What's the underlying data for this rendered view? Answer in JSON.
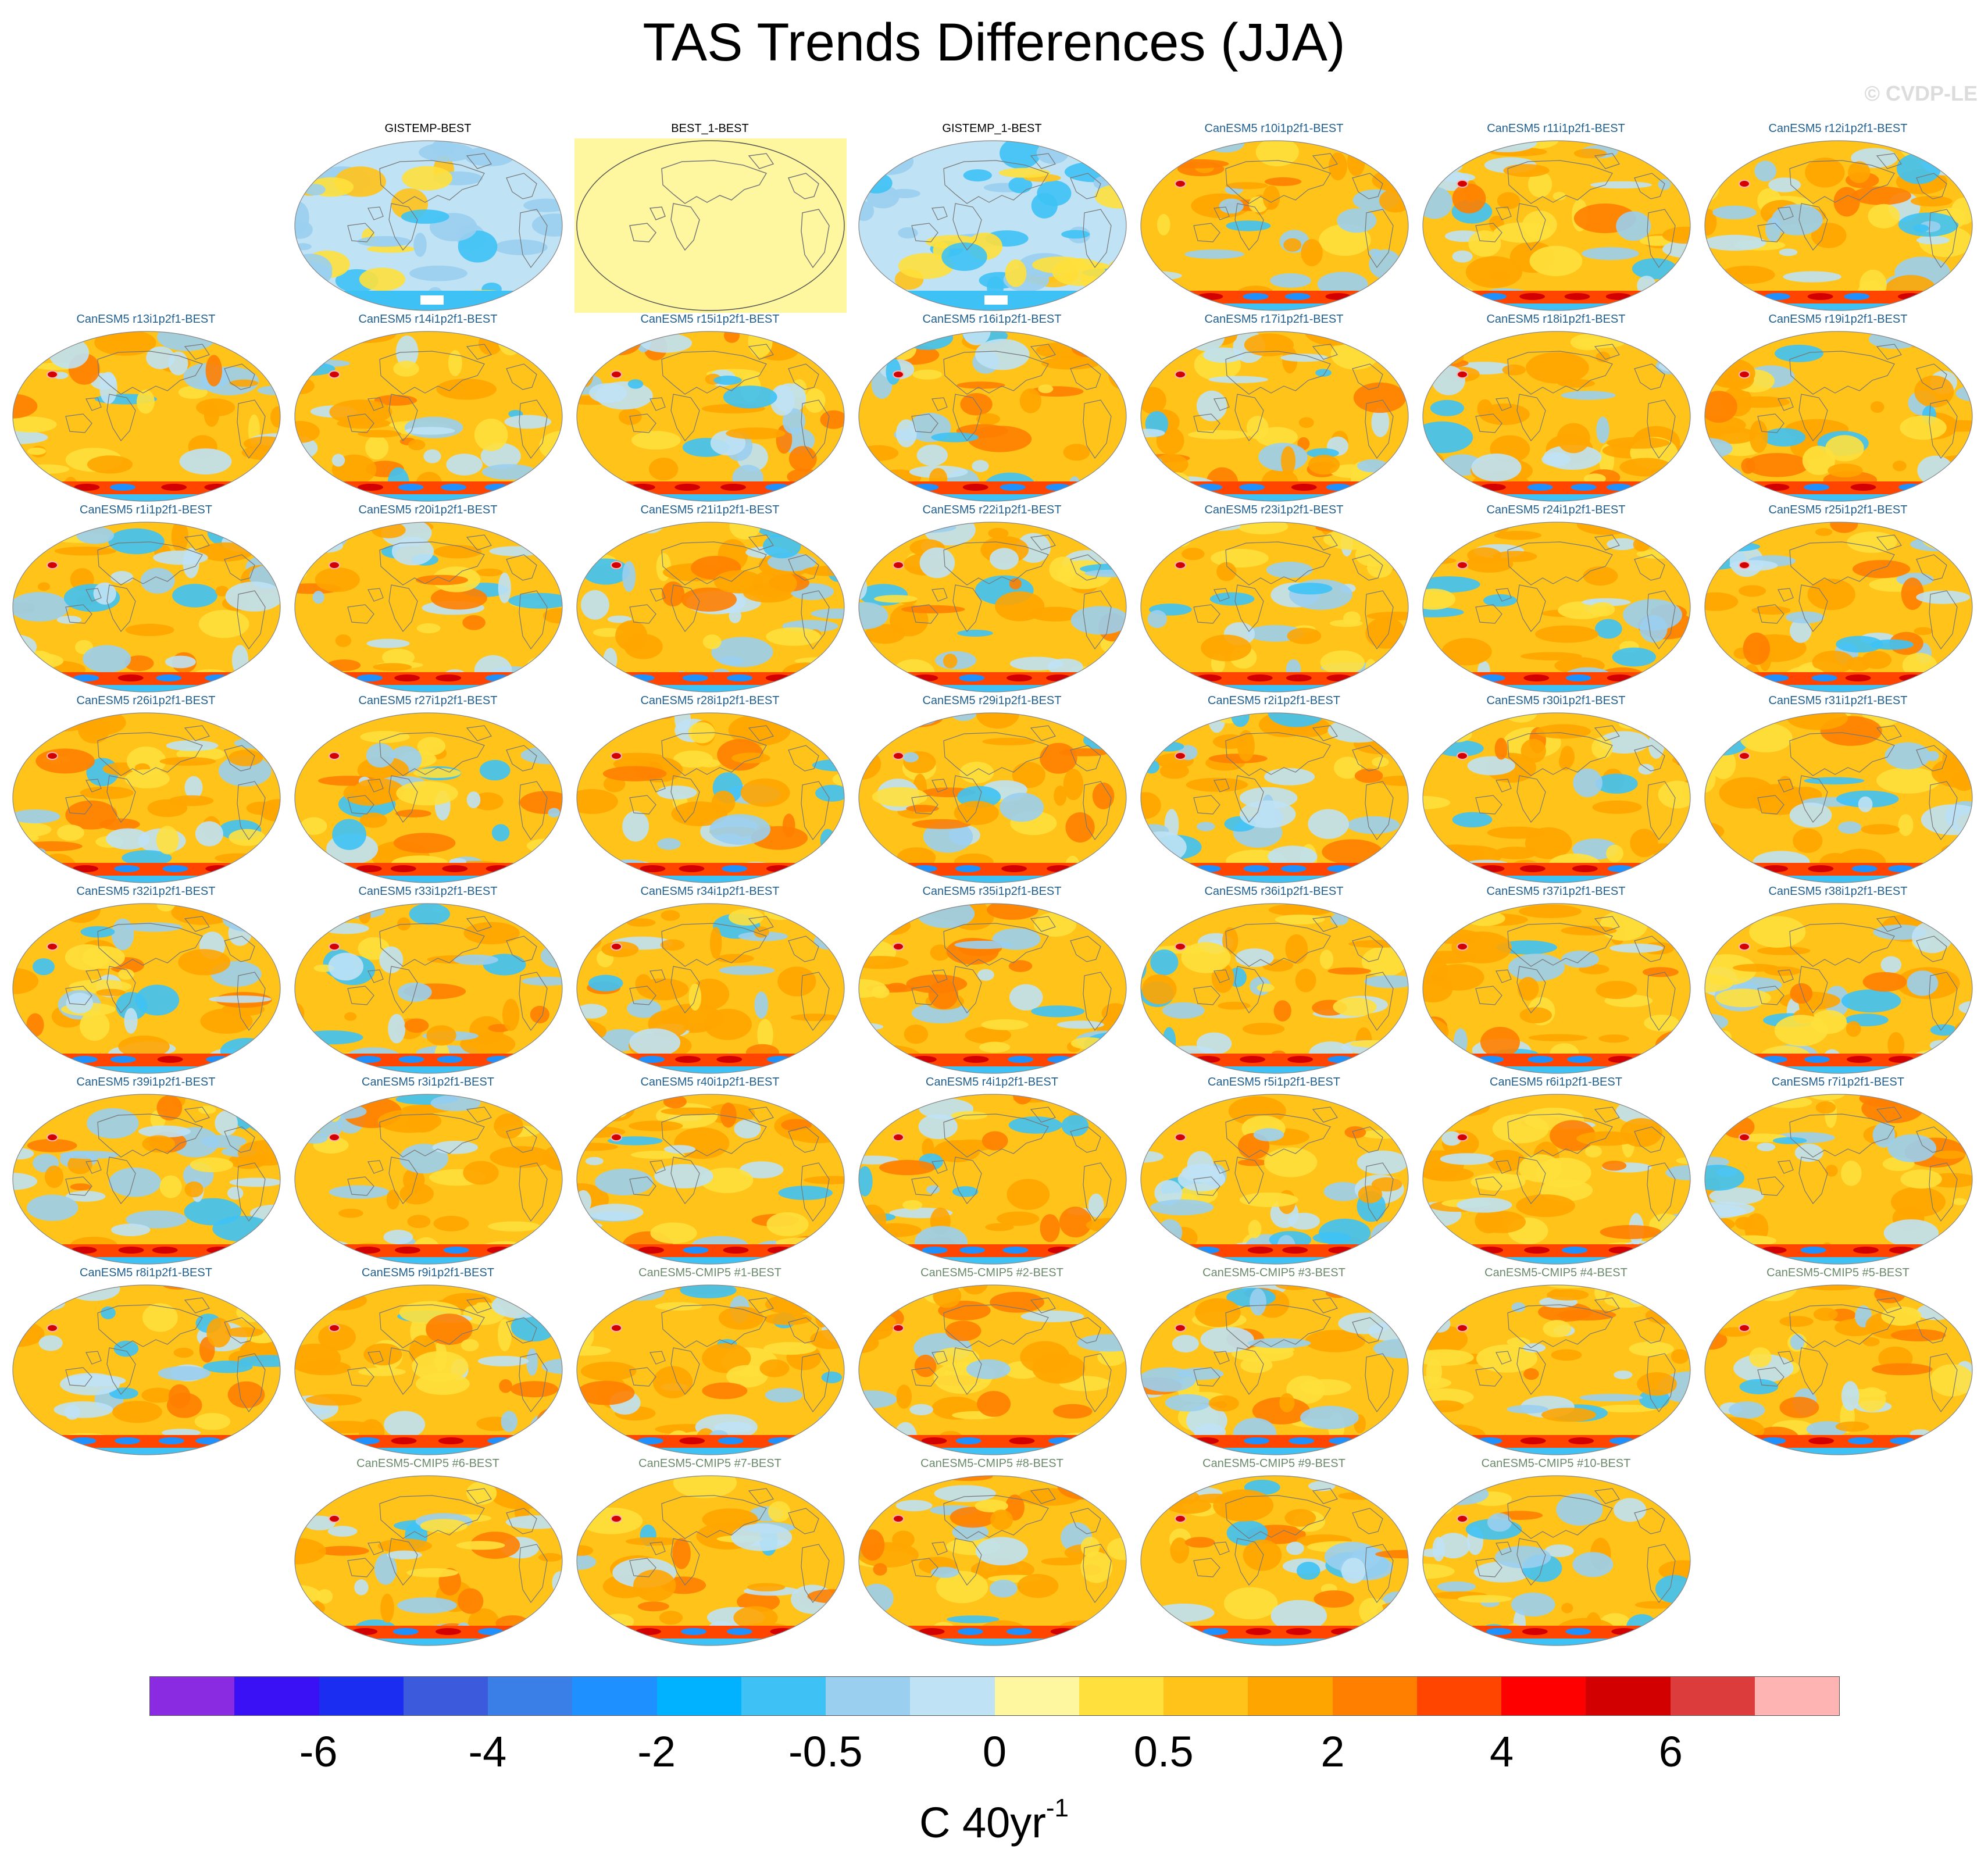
{
  "title": "TAS Trends Differences (JJA)",
  "watermark": "© CVDP-LE",
  "panels": [
    {
      "label": "GISTEMP-BEST",
      "label_color": "#000000",
      "style": "obs"
    },
    {
      "label": "BEST_1-BEST",
      "label_color": "#000000",
      "style": "blank"
    },
    {
      "label": "GISTEMP_1-BEST",
      "label_color": "#000000",
      "style": "obs"
    },
    {
      "label": "CanESM5 r10i1p2f1-BEST",
      "label_color": "#1f5f8f",
      "style": "model"
    },
    {
      "label": "CanESM5 r11i1p2f1-BEST",
      "label_color": "#1f5f8f",
      "style": "model"
    },
    {
      "label": "CanESM5 r12i1p2f1-BEST",
      "label_color": "#1f5f8f",
      "style": "model"
    },
    {
      "label": "CanESM5 r13i1p2f1-BEST",
      "label_color": "#1f5f8f",
      "style": "model"
    },
    {
      "label": "CanESM5 r14i1p2f1-BEST",
      "label_color": "#1f5f8f",
      "style": "model"
    },
    {
      "label": "CanESM5 r15i1p2f1-BEST",
      "label_color": "#1f5f8f",
      "style": "model"
    },
    {
      "label": "CanESM5 r16i1p2f1-BEST",
      "label_color": "#1f5f8f",
      "style": "model"
    },
    {
      "label": "CanESM5 r17i1p2f1-BEST",
      "label_color": "#1f5f8f",
      "style": "model"
    },
    {
      "label": "CanESM5 r18i1p2f1-BEST",
      "label_color": "#1f5f8f",
      "style": "model"
    },
    {
      "label": "CanESM5 r19i1p2f1-BEST",
      "label_color": "#1f5f8f",
      "style": "model"
    },
    {
      "label": "CanESM5 r1i1p2f1-BEST",
      "label_color": "#1f5f8f",
      "style": "model"
    },
    {
      "label": "CanESM5 r20i1p2f1-BEST",
      "label_color": "#1f5f8f",
      "style": "model"
    },
    {
      "label": "CanESM5 r21i1p2f1-BEST",
      "label_color": "#1f5f8f",
      "style": "model"
    },
    {
      "label": "CanESM5 r22i1p2f1-BEST",
      "label_color": "#1f5f8f",
      "style": "model"
    },
    {
      "label": "CanESM5 r23i1p2f1-BEST",
      "label_color": "#1f5f8f",
      "style": "model"
    },
    {
      "label": "CanESM5 r24i1p2f1-BEST",
      "label_color": "#1f5f8f",
      "style": "model"
    },
    {
      "label": "CanESM5 r25i1p2f1-BEST",
      "label_color": "#1f5f8f",
      "style": "model"
    },
    {
      "label": "CanESM5 r26i1p2f1-BEST",
      "label_color": "#1f5f8f",
      "style": "model"
    },
    {
      "label": "CanESM5 r27i1p2f1-BEST",
      "label_color": "#1f5f8f",
      "style": "model"
    },
    {
      "label": "CanESM5 r28i1p2f1-BEST",
      "label_color": "#1f5f8f",
      "style": "model"
    },
    {
      "label": "CanESM5 r29i1p2f1-BEST",
      "label_color": "#1f5f8f",
      "style": "model"
    },
    {
      "label": "CanESM5 r2i1p2f1-BEST",
      "label_color": "#1f5f8f",
      "style": "model"
    },
    {
      "label": "CanESM5 r30i1p2f1-BEST",
      "label_color": "#1f5f8f",
      "style": "model"
    },
    {
      "label": "CanESM5 r31i1p2f1-BEST",
      "label_color": "#1f5f8f",
      "style": "model"
    },
    {
      "label": "CanESM5 r32i1p2f1-BEST",
      "label_color": "#1f5f8f",
      "style": "model"
    },
    {
      "label": "CanESM5 r33i1p2f1-BEST",
      "label_color": "#1f5f8f",
      "style": "model"
    },
    {
      "label": "CanESM5 r34i1p2f1-BEST",
      "label_color": "#1f5f8f",
      "style": "model"
    },
    {
      "label": "CanESM5 r35i1p2f1-BEST",
      "label_color": "#1f5f8f",
      "style": "model"
    },
    {
      "label": "CanESM5 r36i1p2f1-BEST",
      "label_color": "#1f5f8f",
      "style": "model"
    },
    {
      "label": "CanESM5 r37i1p2f1-BEST",
      "label_color": "#1f5f8f",
      "style": "model"
    },
    {
      "label": "CanESM5 r38i1p2f1-BEST",
      "label_color": "#1f5f8f",
      "style": "model"
    },
    {
      "label": "CanESM5 r39i1p2f1-BEST",
      "label_color": "#1f5f8f",
      "style": "model"
    },
    {
      "label": "CanESM5 r3i1p2f1-BEST",
      "label_color": "#1f5f8f",
      "style": "model"
    },
    {
      "label": "CanESM5 r40i1p2f1-BEST",
      "label_color": "#1f5f8f",
      "style": "model"
    },
    {
      "label": "CanESM5 r4i1p2f1-BEST",
      "label_color": "#1f5f8f",
      "style": "model"
    },
    {
      "label": "CanESM5 r5i1p2f1-BEST",
      "label_color": "#1f5f8f",
      "style": "model"
    },
    {
      "label": "CanESM5 r6i1p2f1-BEST",
      "label_color": "#1f5f8f",
      "style": "model"
    },
    {
      "label": "CanESM5 r7i1p2f1-BEST",
      "label_color": "#1f5f8f",
      "style": "model"
    },
    {
      "label": "CanESM5 r8i1p2f1-BEST",
      "label_color": "#1f5f8f",
      "style": "model"
    },
    {
      "label": "CanESM5 r9i1p2f1-BEST",
      "label_color": "#1f5f8f",
      "style": "model"
    },
    {
      "label": "CanESM5-CMIP5 #1-BEST",
      "label_color": "#6b8a6b",
      "style": "model"
    },
    {
      "label": "CanESM5-CMIP5 #2-BEST",
      "label_color": "#6b8a6b",
      "style": "model"
    },
    {
      "label": "CanESM5-CMIP5 #3-BEST",
      "label_color": "#6b8a6b",
      "style": "model"
    },
    {
      "label": "CanESM5-CMIP5 #4-BEST",
      "label_color": "#6b8a6b",
      "style": "model"
    },
    {
      "label": "CanESM5-CMIP5 #5-BEST",
      "label_color": "#6b8a6b",
      "style": "model"
    },
    {
      "label": "CanESM5-CMIP5 #6-BEST",
      "label_color": "#6b8a6b",
      "style": "model"
    },
    {
      "label": "CanESM5-CMIP5 #7-BEST",
      "label_color": "#6b8a6b",
      "style": "model"
    },
    {
      "label": "CanESM5-CMIP5 #8-BEST",
      "label_color": "#6b8a6b",
      "style": "model"
    },
    {
      "label": "CanESM5-CMIP5 #9-BEST",
      "label_color": "#6b8a6b",
      "style": "model"
    },
    {
      "label": "CanESM5-CMIP5 #10-BEST",
      "label_color": "#6b8a6b",
      "style": "model"
    }
  ],
  "colorbar": {
    "colors": [
      "#8a2be2",
      "#3a10f5",
      "#1a2df0",
      "#3b5bdc",
      "#3a7ee8",
      "#1e90ff",
      "#00b2ff",
      "#3ec2f5",
      "#9acff0",
      "#bfe2f5",
      "#fff7a0",
      "#ffe03c",
      "#ffc31a",
      "#ffa500",
      "#ff7f00",
      "#ff4500",
      "#ff0000",
      "#d20000",
      "#dc3c3c",
      "#ffb4b4"
    ],
    "tick_labels": [
      "-6",
      "-4",
      "-2",
      "-0.5",
      "0",
      "0.5",
      "2",
      "4",
      "6"
    ],
    "units": "C 40yr",
    "units_sup": "-1"
  },
  "map_colors": {
    "warm": [
      "#ffc31a",
      "#ffa500",
      "#ffe03c",
      "#ff7f00",
      "#ff4500",
      "#d20000"
    ],
    "cool": [
      "#bfe2f5",
      "#9acff0",
      "#3ec2f5",
      "#1e90ff"
    ],
    "blank_fill": "#fff7a0",
    "coast": "#777777"
  }
}
